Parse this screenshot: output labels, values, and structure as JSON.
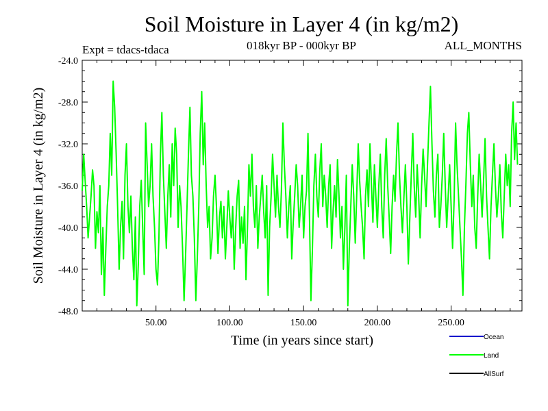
{
  "chart_data": {
    "type": "line",
    "title": "Soil Moisture in Layer 4 (in kg/m2)",
    "subtitle_left": "Expt = tdacs-tdaca",
    "subtitle_center": "018kyr BP - 000kyr BP",
    "subtitle_right": "ALL_MONTHS",
    "xlabel": "Time (in years since start)",
    "ylabel": "Soil Moisture in Layer 4 (in kg/m2)",
    "xlim": [
      0,
      298
    ],
    "ylim": [
      -48.0,
      -24.0
    ],
    "x_ticks": [
      50,
      100,
      150,
      200,
      250
    ],
    "x_tick_labels": [
      "50.00",
      "100.00",
      "150.00",
      "200.00",
      "250.00"
    ],
    "y_ticks": [
      -24,
      -28,
      -32,
      -36,
      -40,
      -44,
      -48
    ],
    "y_tick_labels": [
      "-24.0",
      "-28.0",
      "-32.0",
      "-36.0",
      "-40.0",
      "-44.0",
      "-48.0"
    ],
    "legend": [
      {
        "name": "Ocean",
        "color": "#0000cc"
      },
      {
        "name": "Land",
        "color": "#00ff00"
      },
      {
        "name": "AllSurf",
        "color": "#000000"
      }
    ],
    "series": [
      {
        "name": "Land",
        "color": "#00ff00",
        "x_start": 0,
        "x_step": 1,
        "values": [
          -36.5,
          -33.0,
          -35.5,
          -38.0,
          -41.0,
          -39.0,
          -37.0,
          -34.5,
          -36.0,
          -42.0,
          -38.5,
          -40.5,
          -36.0,
          -44.5,
          -40.0,
          -46.5,
          -42.0,
          -38.0,
          -36.0,
          -31.0,
          -35.0,
          -26.0,
          -28.5,
          -33.0,
          -38.0,
          -44.0,
          -40.0,
          -37.5,
          -43.0,
          -35.0,
          -32.0,
          -38.0,
          -40.5,
          -37.0,
          -42.0,
          -45.0,
          -39.0,
          -47.5,
          -43.5,
          -38.0,
          -35.5,
          -40.0,
          -44.5,
          -30.0,
          -34.0,
          -38.0,
          -36.0,
          -32.0,
          -37.0,
          -40.0,
          -44.0,
          -45.5,
          -41.0,
          -33.0,
          -29.0,
          -35.0,
          -38.5,
          -42.0,
          -37.0,
          -34.0,
          -39.0,
          -32.0,
          -36.0,
          -30.5,
          -33.0,
          -40.0,
          -36.0,
          -38.0,
          -42.0,
          -47.0,
          -43.0,
          -38.0,
          -33.0,
          -28.5,
          -35.0,
          -37.0,
          -41.0,
          -47.0,
          -43.0,
          -38.0,
          -31.0,
          -27.0,
          -34.0,
          -30.0,
          -36.0,
          -40.0,
          -38.0,
          -43.0,
          -41.0,
          -37.0,
          -35.0,
          -38.0,
          -42.5,
          -39.0,
          -37.5,
          -41.0,
          -38.0,
          -43.0,
          -40.0,
          -36.5,
          -39.0,
          -41.0,
          -38.0,
          -44.0,
          -40.0,
          -37.0,
          -35.5,
          -42.0,
          -39.0,
          -41.5,
          -38.0,
          -45.0,
          -40.0,
          -34.0,
          -37.0,
          -33.0,
          -38.0,
          -40.0,
          -36.0,
          -42.0,
          -39.0,
          -37.0,
          -35.0,
          -38.5,
          -41.0,
          -36.0,
          -46.5,
          -40.0,
          -37.0,
          -33.0,
          -36.0,
          -39.0,
          -35.0,
          -38.0,
          -40.0,
          -36.5,
          -30.0,
          -34.0,
          -37.0,
          -41.0,
          -38.0,
          -36.0,
          -43.0,
          -39.5,
          -37.0,
          -34.0,
          -36.0,
          -40.0,
          -38.0,
          -35.0,
          -41.0,
          -38.0,
          -36.5,
          -31.0,
          -39.0,
          -47.0,
          -42.0,
          -36.0,
          -33.0,
          -37.0,
          -39.0,
          -34.5,
          -32.0,
          -38.0,
          -35.0,
          -37.0,
          -40.0,
          -36.0,
          -34.0,
          -42.0,
          -38.5,
          -36.0,
          -39.0,
          -33.5,
          -37.0,
          -41.0,
          -38.0,
          -44.0,
          -40.0,
          -35.0,
          -47.5,
          -42.0,
          -38.0,
          -34.0,
          -37.0,
          -41.5,
          -37.0,
          -32.0,
          -35.5,
          -38.0,
          -40.0,
          -43.0,
          -37.0,
          -34.5,
          -38.0,
          -32.0,
          -36.0,
          -39.5,
          -34.0,
          -37.0,
          -40.0,
          -36.0,
          -33.0,
          -38.0,
          -41.0,
          -35.0,
          -31.5,
          -36.0,
          -39.0,
          -42.5,
          -38.0,
          -35.0,
          -37.5,
          -33.0,
          -30.0,
          -35.0,
          -38.0,
          -40.5,
          -37.0,
          -34.0,
          -38.0,
          -43.5,
          -39.0,
          -35.0,
          -31.0,
          -36.0,
          -39.0,
          -34.0,
          -37.0,
          -41.0,
          -36.0,
          -32.5,
          -35.0,
          -38.0,
          -34.0,
          -30.0,
          -26.5,
          -32.0,
          -36.5,
          -39.0,
          -35.0,
          -33.0,
          -40.0,
          -38.0,
          -35.0,
          -31.0,
          -36.0,
          -40.0,
          -37.0,
          -34.0,
          -38.0,
          -42.0,
          -37.5,
          -30.0,
          -34.0,
          -37.0,
          -40.0,
          -43.0,
          -46.5,
          -40.0,
          -36.0,
          -31.0,
          -29.0,
          -34.0,
          -38.0,
          -35.0,
          -40.0,
          -42.0,
          -37.0,
          -33.0,
          -36.0,
          -39.0,
          -35.5,
          -31.5,
          -37.0,
          -40.0,
          -43.0,
          -38.0,
          -35.0,
          -32.0,
          -36.0,
          -39.0,
          -37.0,
          -34.0,
          -38.5,
          -41.0,
          -37.0,
          -33.0,
          -36.0,
          -34.0,
          -38.0,
          -31.0,
          -28.0,
          -33.5,
          -30.0,
          -34.0
        ]
      }
    ]
  }
}
